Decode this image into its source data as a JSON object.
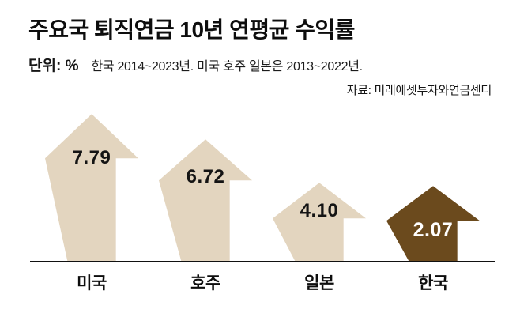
{
  "header": {
    "title": "주요국 퇴직연금 10년 연평균 수익률",
    "unit_label": "단위: %",
    "note": "한국 2014~2023년. 미국 호주 일본은 2013~2022년.",
    "source": "자료: 미래에셋투자와연금센터"
  },
  "chart_data": {
    "type": "bar",
    "title": "주요국 퇴직연금 10년 연평균 수익률",
    "unit": "%",
    "categories": [
      "미국",
      "호주",
      "일본",
      "한국"
    ],
    "values": [
      7.79,
      6.72,
      4.1,
      2.07
    ],
    "value_labels": [
      "7.79",
      "6.72",
      "4.10",
      "2.07"
    ],
    "periods": {
      "한국": "2014~2023년",
      "미국 호주 일본": "2013~2022년"
    },
    "highlight_index": 3,
    "bar_shape": "up-arrow",
    "colors": {
      "bar_default": "#e3d5bf",
      "bar_highlight": "#6b4a1d",
      "value_default": "#141414",
      "value_highlight": "#ffffff",
      "baseline": "#111111"
    },
    "ylim": [
      0,
      8
    ],
    "grid": false,
    "legend": "none",
    "source": "자료: 미래에셋투자와연금센터"
  }
}
